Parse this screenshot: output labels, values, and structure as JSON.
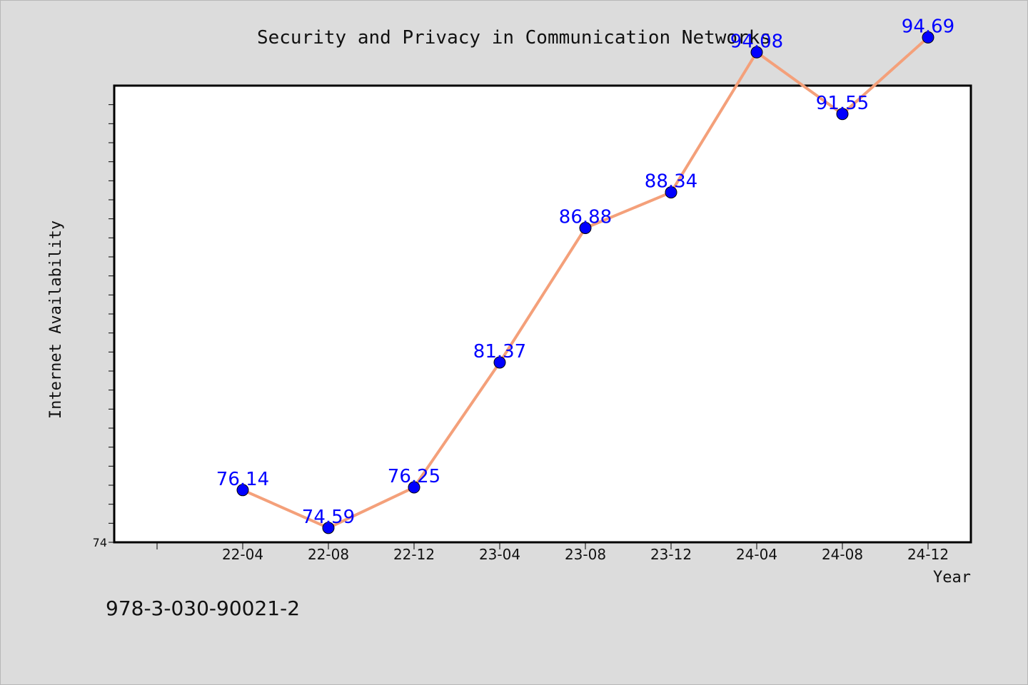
{
  "caption": "978-3-030-90021-2",
  "chart_data": {
    "type": "line",
    "title": "Security and Privacy in Communication Networks",
    "xlabel": "Year",
    "ylabel": "Internet Availability",
    "categories": [
      "22-04",
      "22-08",
      "22-12",
      "23-04",
      "23-08",
      "23-12",
      "24-04",
      "24-08",
      "24-12"
    ],
    "series": [
      {
        "values": [
          76.14,
          74.59,
          76.25,
          81.37,
          86.88,
          88.34,
          94.08,
          91.55,
          94.69
        ],
        "line_color": "#f4a07a",
        "marker_color": "#0000ff"
      }
    ],
    "ylim": [
      74,
      97
    ],
    "ytick_labels": [
      "74"
    ],
    "grid": false,
    "legend": "none"
  }
}
